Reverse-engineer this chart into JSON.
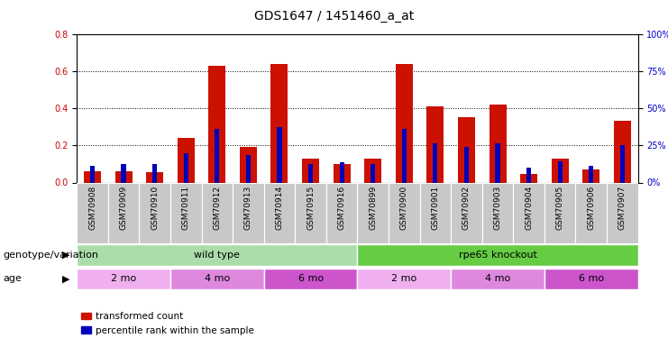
{
  "title": "GDS1647 / 1451460_a_at",
  "samples": [
    "GSM70908",
    "GSM70909",
    "GSM70910",
    "GSM70911",
    "GSM70912",
    "GSM70913",
    "GSM70914",
    "GSM70915",
    "GSM70916",
    "GSM70899",
    "GSM70900",
    "GSM70901",
    "GSM70902",
    "GSM70903",
    "GSM70904",
    "GSM70905",
    "GSM70906",
    "GSM70907"
  ],
  "red_values": [
    0.06,
    0.062,
    0.058,
    0.24,
    0.63,
    0.19,
    0.64,
    0.13,
    0.1,
    0.128,
    0.64,
    0.41,
    0.35,
    0.42,
    0.048,
    0.13,
    0.068,
    0.33
  ],
  "blue_values": [
    0.09,
    0.1,
    0.098,
    0.16,
    0.29,
    0.15,
    0.3,
    0.1,
    0.11,
    0.1,
    0.29,
    0.21,
    0.19,
    0.21,
    0.078,
    0.112,
    0.088,
    0.2
  ],
  "ylim_left": [
    0,
    0.8
  ],
  "ylim_right": [
    0,
    100
  ],
  "yticks_left": [
    0,
    0.2,
    0.4,
    0.6,
    0.8
  ],
  "yticks_right": [
    0,
    25,
    50,
    75,
    100
  ],
  "ylabel_left_color": "#cc0000",
  "ylabel_right_color": "#0000cc",
  "bar_color_red": "#cc1100",
  "bar_color_blue": "#0000bb",
  "bg_color": "#ffffff",
  "plot_bg": "#ffffff",
  "genotype_groups": [
    {
      "label": "wild type",
      "start": 0,
      "end": 9,
      "color": "#aaddaa"
    },
    {
      "label": "rpe65 knockout",
      "start": 9,
      "end": 18,
      "color": "#66cc44"
    }
  ],
  "age_groups": [
    {
      "label": "2 mo",
      "start": 0,
      "end": 3,
      "color": "#f0b0f0"
    },
    {
      "label": "4 mo",
      "start": 3,
      "end": 6,
      "color": "#dd88dd"
    },
    {
      "label": "6 mo",
      "start": 6,
      "end": 9,
      "color": "#cc55cc"
    },
    {
      "label": "2 mo",
      "start": 9,
      "end": 12,
      "color": "#f0b0f0"
    },
    {
      "label": "4 mo",
      "start": 12,
      "end": 15,
      "color": "#dd88dd"
    },
    {
      "label": "6 mo",
      "start": 15,
      "end": 18,
      "color": "#cc55cc"
    }
  ],
  "genotype_label": "genotype/variation",
  "age_label": "age",
  "legend_red": "transformed count",
  "legend_blue": "percentile rank within the sample",
  "bar_width": 0.55,
  "blue_bar_width": 0.15,
  "tick_fontsize": 7,
  "sample_fontsize": 6.5,
  "row_label_fontsize": 8,
  "title_fontsize": 10
}
